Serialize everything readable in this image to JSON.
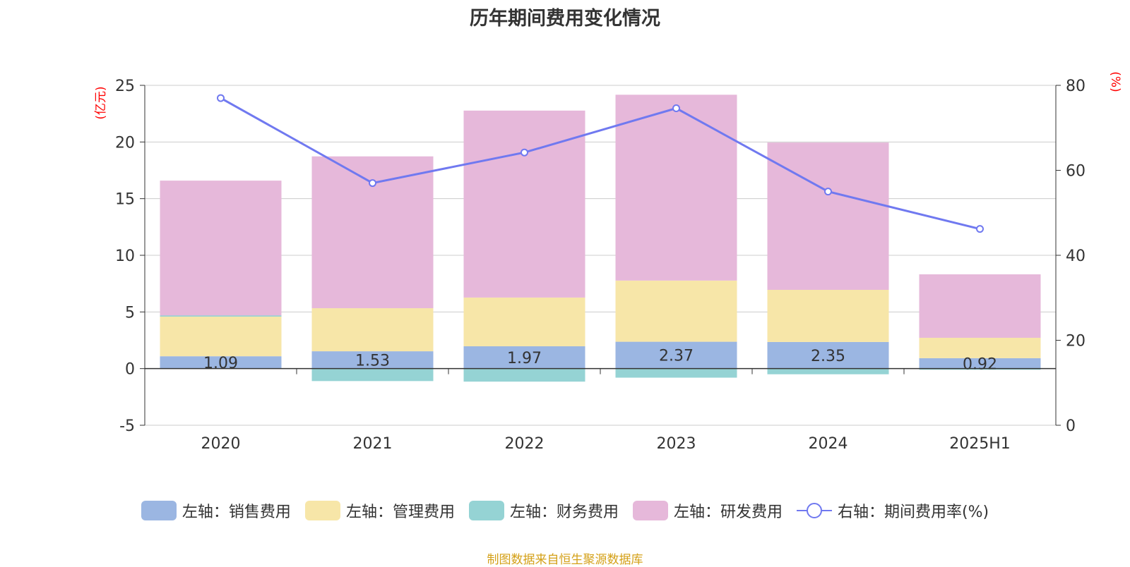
{
  "title": "历年期间费用变化情况",
  "source_note": "制图数据来自恒生聚源数据库",
  "colors": {
    "sales": "#9bb6e2",
    "admin": "#f7e6a8",
    "finance": "#95d3d4",
    "rd": "#e6b8da",
    "rate_line": "#7079f0",
    "unit_label": "#ff0000"
  },
  "chart_data": {
    "type": "bar",
    "stacked": true,
    "categories": [
      "2020",
      "2021",
      "2022",
      "2023",
      "2024",
      "2025H1"
    ],
    "left_axis": {
      "unit": "(亿元)",
      "ylim": [
        -5,
        25
      ],
      "ticks": [
        "-5",
        "0",
        "5",
        "10",
        "15",
        "20",
        "25"
      ]
    },
    "right_axis": {
      "unit": "(%)",
      "ylim": [
        0,
        80
      ],
      "ticks": [
        "0",
        "20",
        "40",
        "60",
        "80"
      ]
    },
    "grid": true,
    "legend_position": "bottom",
    "series": [
      {
        "key": "sales",
        "name": "左轴：销售费用",
        "axis": "left",
        "values": [
          1.09,
          1.53,
          1.97,
          2.37,
          2.35,
          0.92
        ],
        "data_labels": [
          "1.09",
          "1.53",
          "1.97",
          "2.37",
          "2.35",
          "0.92"
        ]
      },
      {
        "key": "admin",
        "name": "左轴：管理费用",
        "axis": "left",
        "values": [
          3.5,
          3.8,
          4.3,
          5.4,
          4.6,
          1.8
        ]
      },
      {
        "key": "finance",
        "name": "左轴：财务费用",
        "axis": "left",
        "values": [
          0.1,
          -1.1,
          -1.15,
          -0.8,
          -0.5,
          -0.1
        ]
      },
      {
        "key": "rd",
        "name": "左轴：研发费用",
        "axis": "left",
        "values": [
          12.0,
          13.4,
          16.5,
          16.4,
          13.0,
          5.6
        ]
      },
      {
        "key": "rate",
        "name": "右轴：期间费用率(%)",
        "axis": "right",
        "type": "line",
        "values": [
          77.0,
          57.0,
          64.2,
          74.6,
          55.0,
          46.2
        ]
      }
    ]
  }
}
